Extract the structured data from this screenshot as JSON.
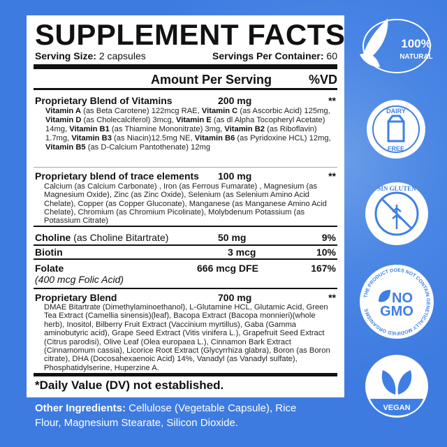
{
  "title": "SUPPLEMENT FACTS",
  "serving_size_label": "Serving Size:",
  "serving_size": "2 capsules",
  "servings_label": "Servings Per Container:",
  "servings": "60",
  "amount_header": "Amount Per Serving",
  "dv_header": "%VD",
  "rows": [
    {
      "name": "Proprietary Blend of Vitamins",
      "amount": "200 mg",
      "dv": "**",
      "details": [
        {
          "b": "Vitamin A",
          "t": " (as Beta Carotene) 122mcg RAE,   "
        },
        {
          "b": "Vitamin C",
          "t": " (as Ascorbic Acid) 125mg,   "
        },
        {
          "b": "Vitamin D",
          "t": " (as Cholecalciferol) 3mcg,   "
        },
        {
          "b": "Vitamin E",
          "t": " (as dl Alpha Tocopheryl Acetate) 14mg,   "
        },
        {
          "b": "Vitamin B1",
          "t": " (as Thiamine Mononitrate) 3mg, "
        },
        {
          "b": "Vitamin B2",
          "t": " (as Riboflavin) 1.7mg,  "
        },
        {
          "b": "Vitamin B3",
          "t": " (as Niacin)12.5mg NE, "
        },
        {
          "b": "Vitamin B6",
          "t": " (as Pyridoxine HCL) 12mg,   "
        },
        {
          "b": "Vitamin B5",
          "t": " (as D-Calcium Pantothenate) 12mg"
        }
      ]
    },
    {
      "name": "Proprietary blend of trace elements",
      "amount": "100 mg",
      "dv": "**",
      "text": "Calcium (as Calcium Carbonate) , Iron (as Ferrous Fumarate) , Magnesium (as Magnesium Oxide), Zinc (as Zinc Oxide), Selenium (as Selenium Amino Acid Chelate), Copper (as Copper Gluconate), Manganese (as Manganese Amino Acid Chelate), Chromium (as Chromium Picolinate), Molybdenum Potassium (as Potassium Citrate)"
    },
    {
      "name": "Choline",
      "note": " (as Choline Bitartrate)",
      "amount": "50 mg",
      "dv": "9%"
    },
    {
      "name": "Biotin",
      "amount": "3 mcg",
      "dv": "10%"
    },
    {
      "name": "Folate",
      "sub": "(400 mcg Folic Acid)",
      "amount": "666 mcg DFE",
      "dv": "167%"
    },
    {
      "name": "Proprietary Blend",
      "amount": "700 mg",
      "dv": "**",
      "text": "DMAE Bitartrate (Dimethylaminoethanol),  L-Glutamine HCL, Glutamic Acid, Green Tea Extract (Camellia sinensis)(leaf), Bacopa Extract (Bacopa monnieri)(whole herb),  Inositol, Bilberry Fruit Extract (Vaccinium myrtillus), Gaba (Gamma aminobutyric acid), Grape Seed Extract (Vitis vinifera L.), Grapefruit Seed Extract (Citrus parodisi), Olive Leaf (Olea europaea L.), Cinnamon Bark Extract (Cinnamomum cassia), Licorice Root Extract (Glycyrrhiza glabra), Boron (as Boron citrate),        DHA (Docosahexaenoic Acid) 14%,  Vanadyl (as Vanadyl sulfate), Phosphatidylserine, Huperzine A."
    }
  ],
  "dv_note": "*Daily Value (DV) not established.",
  "other_label": "Other Ingredients:",
  "other_text": " Cellulose (Vegetable Capsule), Rice Flour, Magnesium Stearate, Silicon Dioxide.",
  "badges": {
    "natural": [
      "100%",
      "NATURAL"
    ],
    "dairy": [
      "DAIRY",
      "FREE"
    ],
    "gluten": "SIN GLUTEN",
    "gmo": [
      "NO",
      "GMO",
      "THE PRODUCT DOES NOT CONTAIN GENETICALLY MODIFIED ORGANISMS"
    ],
    "vegan": "VEGAN"
  },
  "colors": {
    "background": "#3f7fe3",
    "panel": "#ffffff",
    "text": "#111111"
  }
}
